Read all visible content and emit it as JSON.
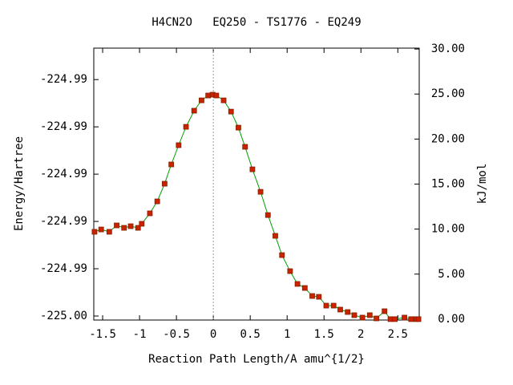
{
  "chart_data": {
    "type": "line",
    "title": "H4CN2O   EQ250 - TS1776 - EQ249",
    "x_label": "Reaction Path Length/A amu^{1/2}",
    "y_label": "Energy/Hartree",
    "y2_label": "kJ/mol",
    "xlim": [
      -1.62,
      2.79
    ],
    "xticks": [
      -1.5,
      -1,
      -0.5,
      0,
      0.5,
      1,
      1.5,
      2,
      2.5
    ],
    "ylim": [
      -225.00017,
      -224.98867
    ],
    "yticks": [
      {
        "value": -225.0,
        "label": "-225.00"
      },
      {
        "value": -224.998,
        "label": "-224.99"
      },
      {
        "value": -224.996,
        "label": "-224.99"
      },
      {
        "value": -224.994,
        "label": "-224.99"
      },
      {
        "value": -224.992,
        "label": "-224.99"
      },
      {
        "value": -224.99,
        "label": "-224.99"
      }
    ],
    "y2lim": [
      -0.1,
      30.1
    ],
    "y2ticks": [
      {
        "value": 0,
        "label": "0.00"
      },
      {
        "value": 5,
        "label": "5.00"
      },
      {
        "value": 10,
        "label": "10.00"
      },
      {
        "value": 15,
        "label": "15.00"
      },
      {
        "value": 20,
        "label": "20.00"
      },
      {
        "value": 25,
        "label": "25.00"
      },
      {
        "value": 30,
        "label": "30.00"
      }
    ],
    "vline": 0,
    "line_color": "#00a000",
    "marker_color": "#cc2200",
    "series": [
      {
        "axis": "y2",
        "x": [
          -1.61,
          -1.52,
          -1.41,
          -1.31,
          -1.21,
          -1.12,
          -1.02,
          -0.97,
          -0.86,
          -0.76,
          -0.66,
          -0.57,
          -0.47,
          -0.37,
          -0.26,
          -0.16,
          -0.07,
          -0.01,
          0.04,
          0.14,
          0.24,
          0.34,
          0.43,
          0.53,
          0.64,
          0.74,
          0.84,
          0.93,
          1.04,
          1.14,
          1.24,
          1.34,
          1.43,
          1.53,
          1.63,
          1.72,
          1.82,
          1.91,
          2.02,
          2.12,
          2.21,
          2.32,
          2.4,
          2.46,
          2.59,
          2.68,
          2.75,
          2.78
        ],
        "values": [
          9.7,
          9.96,
          9.7,
          10.41,
          10.14,
          10.32,
          10.14,
          10.59,
          11.75,
          13.08,
          15.04,
          17.18,
          19.32,
          21.36,
          23.15,
          24.3,
          24.84,
          24.93,
          24.84,
          24.3,
          23.05,
          21.27,
          19.14,
          16.64,
          14.14,
          11.56,
          9.25,
          7.11,
          5.33,
          3.91,
          3.46,
          2.57,
          2.48,
          1.5,
          1.5,
          1.06,
          0.79,
          0.44,
          0.17,
          0.44,
          0.08,
          0.88,
          0.0,
          0.0,
          0.17,
          0.0,
          0.0,
          0.0
        ]
      }
    ]
  }
}
